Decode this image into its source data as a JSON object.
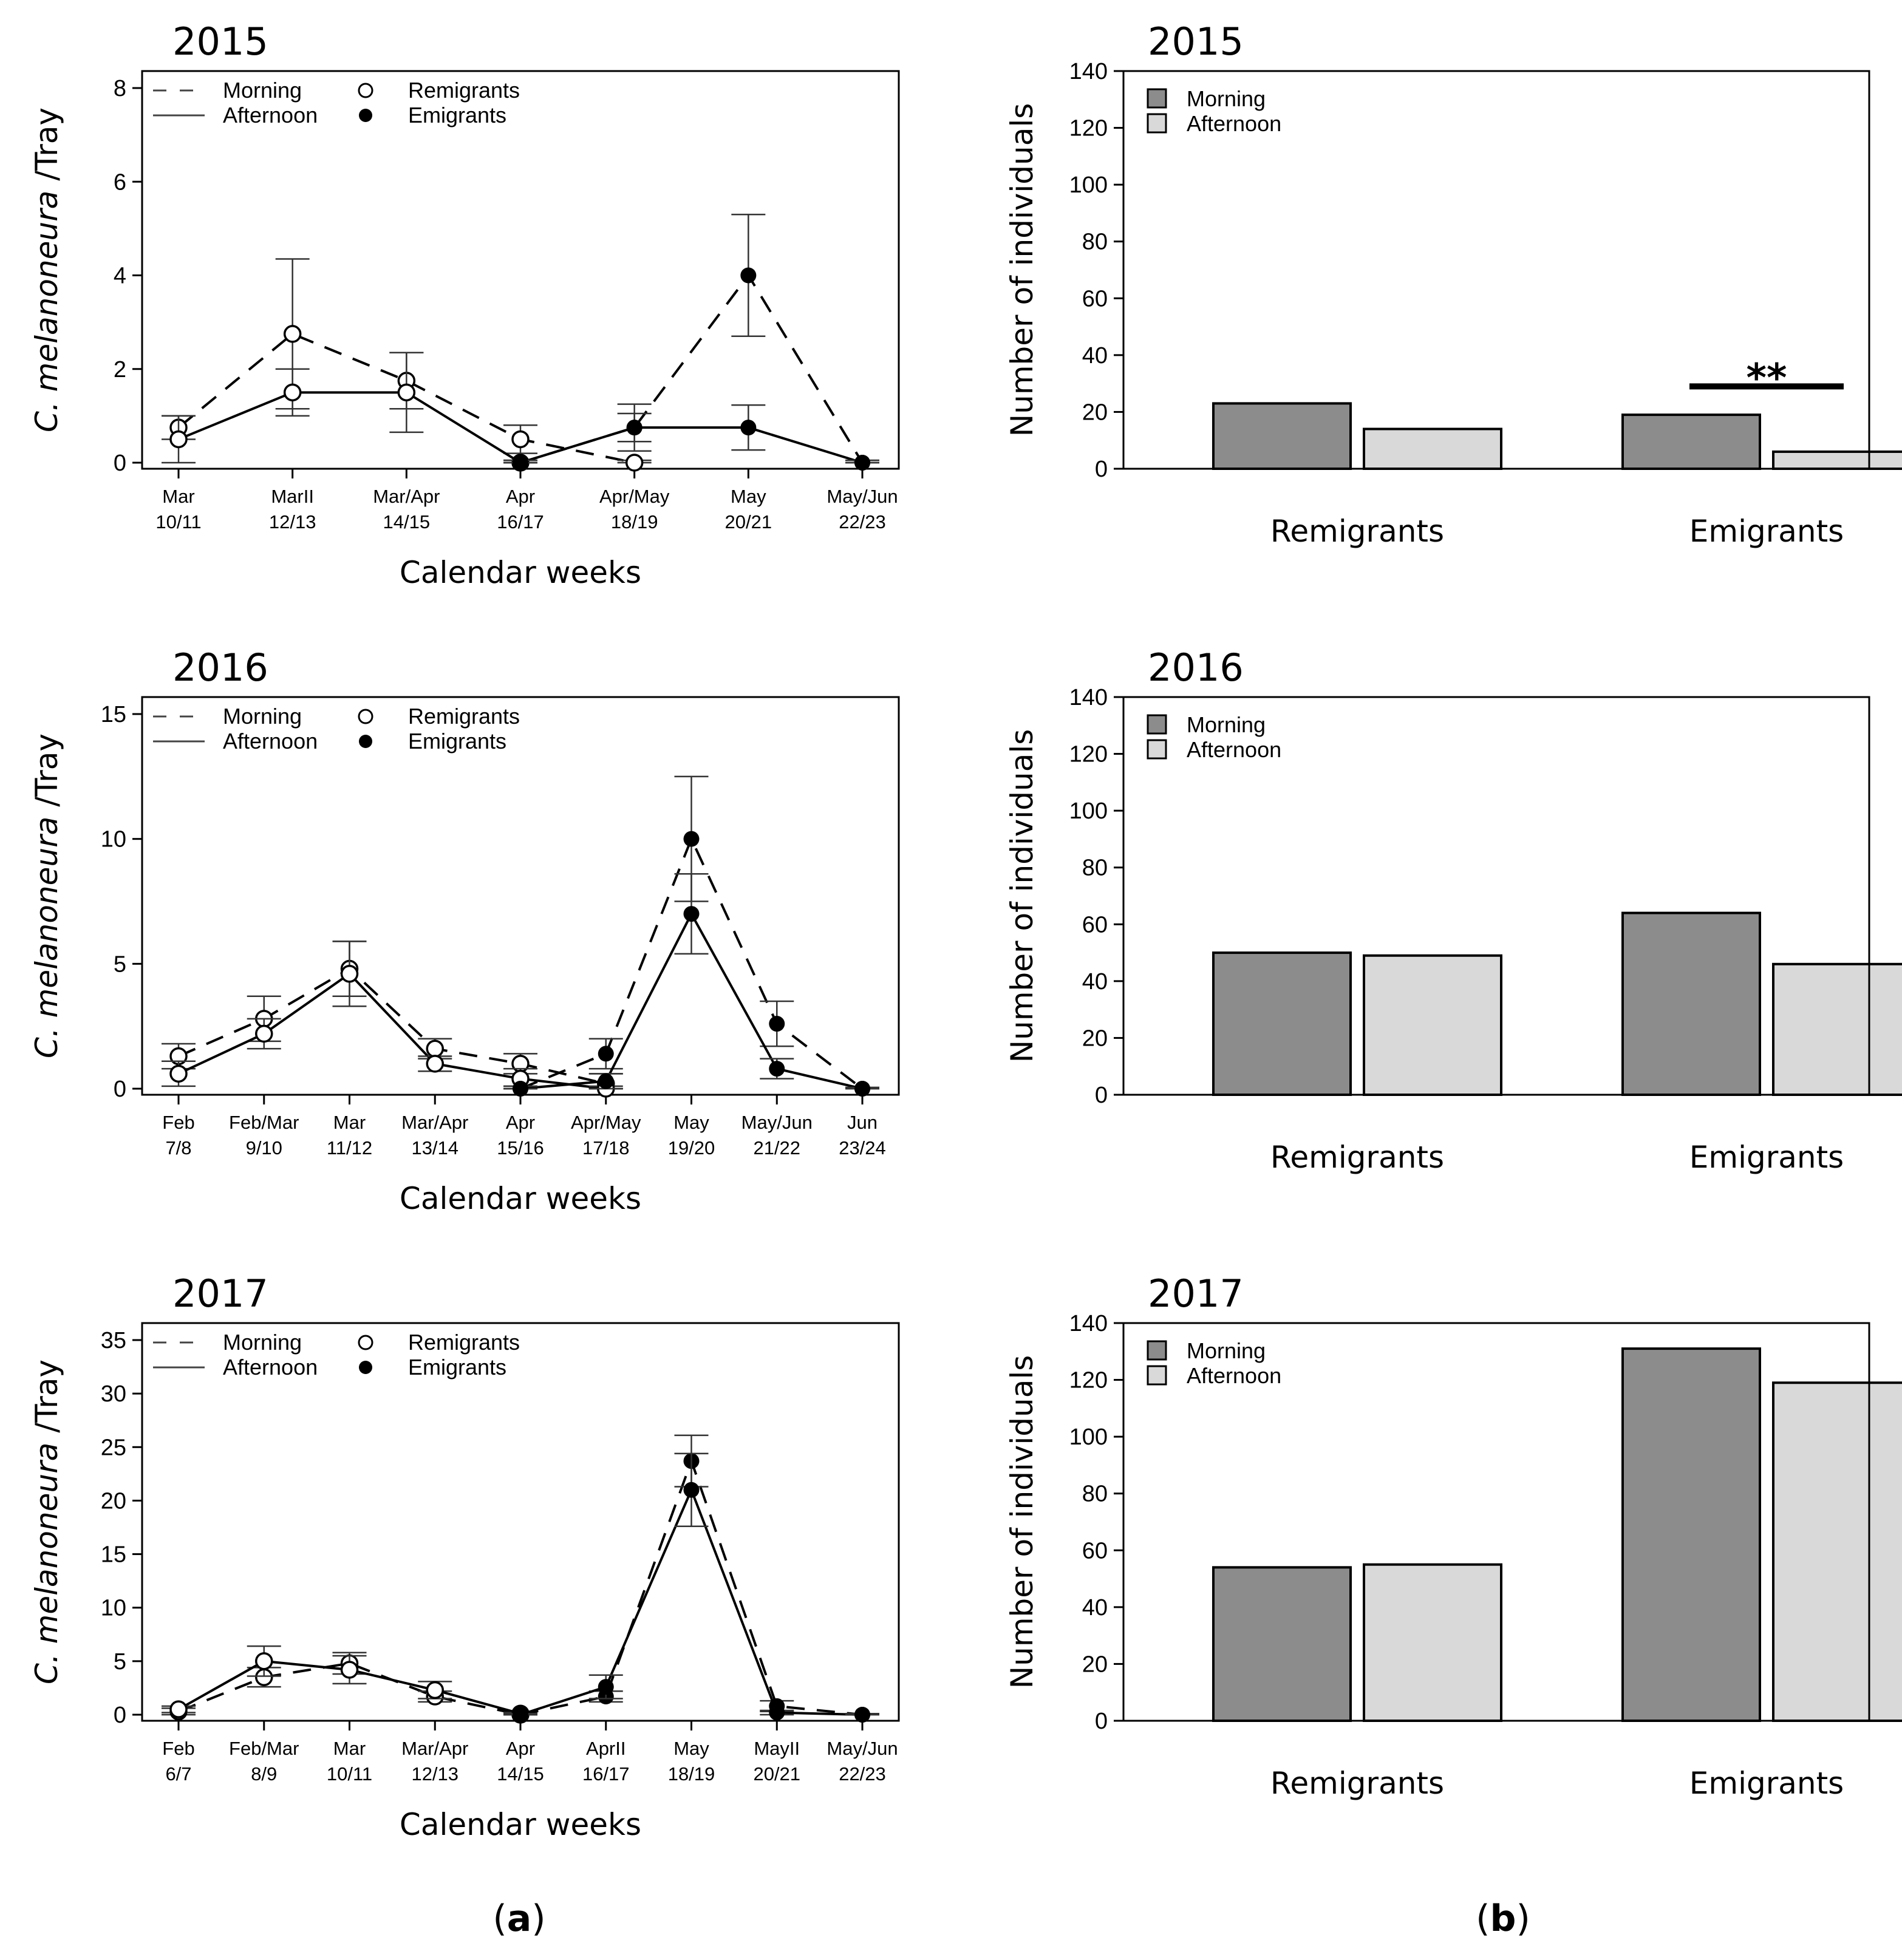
{
  "panel_labels": {
    "a": "a",
    "b": "b"
  },
  "colors": {
    "morning_bar": "#8c8c8c",
    "afternoon_bar": "#d9d9d9",
    "axis": "#000000"
  },
  "chart_data": [
    {
      "id": "a-2015",
      "type": "line",
      "title": "2015",
      "xlabel": "Calendar weeks",
      "ylabel_italic": "C. melanoneura",
      "ylabel_rest": " /Tray",
      "x_labels": [
        [
          "Mar",
          "10/11"
        ],
        [
          "MarII",
          "12/13"
        ],
        [
          "Mar/Apr",
          "14/15"
        ],
        [
          "Apr",
          "16/17"
        ],
        [
          "Apr/May",
          "18/19"
        ],
        [
          "May",
          "20/21"
        ],
        [
          "May/Jun",
          "22/23"
        ]
      ],
      "ylim": [
        0,
        8
      ],
      "yticks": [
        0,
        2,
        4,
        6,
        8
      ],
      "legend": {
        "morning": "Morning",
        "afternoon": "Afternoon",
        "remigrants": "Remigrants",
        "emigrants": "Emigrants"
      },
      "series": [
        {
          "name": "Remigrants Morning",
          "marker": "open",
          "line": "dashed",
          "points": [
            [
              0,
              0.75
            ],
            [
              1,
              2.75
            ],
            [
              2,
              1.75
            ],
            [
              3,
              0.5
            ],
            [
              4,
              0.0
            ]
          ],
          "err": [
            0.25,
            1.6,
            0.6,
            0.3,
            0.05
          ]
        },
        {
          "name": "Remigrants Afternoon",
          "marker": "open",
          "line": "solid",
          "points": [
            [
              0,
              0.5
            ],
            [
              1,
              1.5
            ],
            [
              2,
              1.5
            ],
            [
              3,
              0.0
            ]
          ],
          "err": [
            0.5,
            0.5,
            0.85,
            0.05
          ]
        },
        {
          "name": "Emigrants Morning",
          "marker": "filled",
          "line": "dashed",
          "points": [
            [
              3,
              0.0
            ],
            [
              4,
              0.75
            ],
            [
              5,
              4.0
            ],
            [
              6,
              0.0
            ]
          ],
          "err": [
            0.05,
            0.5,
            1.3,
            0.05
          ]
        },
        {
          "name": "Emigrants Afternoon",
          "marker": "filled",
          "line": "solid",
          "points": [
            [
              3,
              0.0
            ],
            [
              4,
              0.75
            ],
            [
              5,
              0.75
            ],
            [
              6,
              0.0
            ]
          ],
          "err": [
            0.05,
            0.3,
            0.48,
            0.05
          ]
        }
      ]
    },
    {
      "id": "a-2016",
      "type": "line",
      "title": "2016",
      "xlabel": "Calendar weeks",
      "ylabel_italic": "C. melanoneura",
      "ylabel_rest": " /Tray",
      "x_labels": [
        [
          "Feb",
          "7/8"
        ],
        [
          "Feb/Mar",
          "9/10"
        ],
        [
          "Mar",
          "11/12"
        ],
        [
          "Mar/Apr",
          "13/14"
        ],
        [
          "Apr",
          "15/16"
        ],
        [
          "Apr/May",
          "17/18"
        ],
        [
          "May",
          "19/20"
        ],
        [
          "May/Jun",
          "21/22"
        ],
        [
          "Jun",
          "23/24"
        ]
      ],
      "ylim": [
        0,
        15
      ],
      "yticks": [
        0,
        5,
        10,
        15
      ],
      "legend": {
        "morning": "Morning",
        "afternoon": "Afternoon",
        "remigrants": "Remigrants",
        "emigrants": "Emigrants"
      },
      "series": [
        {
          "name": "Remigrants Morning",
          "marker": "open",
          "line": "dashed",
          "points": [
            [
              0,
              1.3
            ],
            [
              1,
              2.8
            ],
            [
              2,
              4.8
            ],
            [
              3,
              1.6
            ],
            [
              4,
              1.0
            ],
            [
              5,
              0.2
            ]
          ],
          "err": [
            0.5,
            0.9,
            1.1,
            0.4,
            0.4,
            0.4
          ]
        },
        {
          "name": "Remigrants Afternoon",
          "marker": "open",
          "line": "solid",
          "points": [
            [
              0,
              0.6
            ],
            [
              1,
              2.2
            ],
            [
              2,
              4.6
            ],
            [
              3,
              1.0
            ],
            [
              4,
              0.4
            ],
            [
              5,
              0.0
            ]
          ],
          "err": [
            0.5,
            0.6,
            1.3,
            0.3,
            0.4,
            0.1
          ]
        },
        {
          "name": "Emigrants Morning",
          "marker": "filled",
          "line": "dashed",
          "points": [
            [
              4,
              0.0
            ],
            [
              5,
              1.4
            ],
            [
              6,
              10.0
            ],
            [
              7,
              2.6
            ],
            [
              8,
              0.0
            ]
          ],
          "err": [
            0.1,
            0.6,
            2.5,
            0.9,
            0.05
          ]
        },
        {
          "name": "Emigrants Afternoon",
          "marker": "filled",
          "line": "solid",
          "points": [
            [
              4,
              0.0
            ],
            [
              5,
              0.3
            ],
            [
              6,
              7.0
            ],
            [
              7,
              0.8
            ],
            [
              8,
              0.0
            ]
          ],
          "err": [
            0.1,
            0.3,
            1.6,
            0.4,
            0.05
          ]
        }
      ]
    },
    {
      "id": "a-2017",
      "type": "line",
      "title": "2017",
      "xlabel": "Calendar weeks",
      "ylabel_italic": "C. melanoneura",
      "ylabel_rest": " /Tray",
      "x_labels": [
        [
          "Feb",
          "6/7"
        ],
        [
          "Feb/Mar",
          "8/9"
        ],
        [
          "Mar",
          "10/11"
        ],
        [
          "Mar/Apr",
          "12/13"
        ],
        [
          "Apr",
          "14/15"
        ],
        [
          "AprII",
          "16/17"
        ],
        [
          "May",
          "18/19"
        ],
        [
          "MayII",
          "20/21"
        ],
        [
          "May/Jun",
          "22/23"
        ]
      ],
      "ylim": [
        0,
        35
      ],
      "yticks": [
        0,
        5,
        10,
        15,
        20,
        25,
        30,
        35
      ],
      "legend": {
        "morning": "Morning",
        "afternoon": "Afternoon",
        "remigrants": "Remigrants",
        "emigrants": "Emigrants"
      },
      "series": [
        {
          "name": "Remigrants Morning",
          "marker": "open",
          "line": "dashed",
          "points": [
            [
              0,
              0.3
            ],
            [
              1,
              3.5
            ],
            [
              2,
              4.8
            ],
            [
              3,
              1.7
            ],
            [
              4,
              0.0
            ]
          ],
          "err": [
            0.3,
            0.9,
            1.0,
            0.5,
            0.1
          ]
        },
        {
          "name": "Remigrants Afternoon",
          "marker": "open",
          "line": "solid",
          "points": [
            [
              0,
              0.5
            ],
            [
              1,
              5.0
            ],
            [
              2,
              4.2
            ],
            [
              3,
              2.3
            ],
            [
              4,
              0.1
            ]
          ],
          "err": [
            0.3,
            1.4,
            1.3,
            0.8,
            0.1
          ]
        },
        {
          "name": "Emigrants Morning",
          "marker": "filled",
          "line": "dashed",
          "points": [
            [
              4,
              0.0
            ],
            [
              5,
              1.7
            ],
            [
              6,
              23.7
            ],
            [
              7,
              0.8
            ],
            [
              8,
              0.0
            ]
          ],
          "err": [
            0.1,
            0.5,
            2.4,
            0.5,
            0.1
          ]
        },
        {
          "name": "Emigrants Afternoon",
          "marker": "filled",
          "line": "solid",
          "points": [
            [
              4,
              0.0
            ],
            [
              5,
              2.6
            ],
            [
              6,
              21.0
            ],
            [
              7,
              0.2
            ],
            [
              8,
              0.0
            ]
          ],
          "err": [
            0.1,
            1.1,
            3.4,
            0.2,
            0.1
          ]
        }
      ]
    },
    {
      "id": "b-2015",
      "type": "bar",
      "title": "2015",
      "ylabel": "Number of individuals",
      "ylim": [
        0,
        140
      ],
      "yticks": [
        0,
        20,
        40,
        60,
        80,
        100,
        120,
        140
      ],
      "categories": [
        "Remigrants",
        "Emigrants"
      ],
      "series": [
        {
          "name": "Morning",
          "values": [
            23,
            19
          ]
        },
        {
          "name": "Afternoon",
          "values": [
            14,
            6
          ]
        }
      ],
      "annotation": {
        "text": "**",
        "category": "Emigrants",
        "y": 29
      }
    },
    {
      "id": "b-2016",
      "type": "bar",
      "title": "2016",
      "ylabel": "Number of individuals",
      "ylim": [
        0,
        140
      ],
      "yticks": [
        0,
        20,
        40,
        60,
        80,
        100,
        120,
        140
      ],
      "categories": [
        "Remigrants",
        "Emigrants"
      ],
      "series": [
        {
          "name": "Morning",
          "values": [
            50,
            64
          ]
        },
        {
          "name": "Afternoon",
          "values": [
            49,
            46
          ]
        }
      ]
    },
    {
      "id": "b-2017",
      "type": "bar",
      "title": "2017",
      "ylabel": "Number of individuals",
      "ylim": [
        0,
        140
      ],
      "yticks": [
        0,
        20,
        40,
        60,
        80,
        100,
        120,
        140
      ],
      "categories": [
        "Remigrants",
        "Emigrants"
      ],
      "series": [
        {
          "name": "Morning",
          "values": [
            54,
            131
          ]
        },
        {
          "name": "Afternoon",
          "values": [
            55,
            119
          ]
        }
      ]
    }
  ]
}
